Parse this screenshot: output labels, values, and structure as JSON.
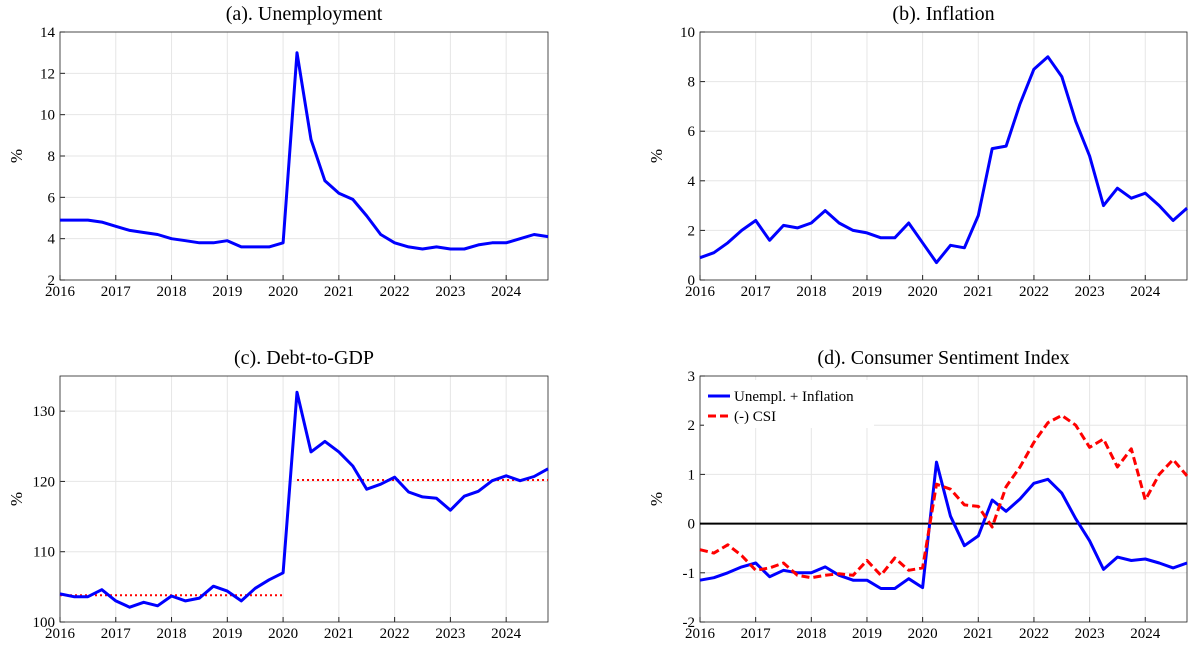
{
  "chart_data": [
    {
      "type": "line",
      "title": "(a). Unemployment",
      "ylabel": "%",
      "x": [
        2016,
        2016.25,
        2016.5,
        2016.75,
        2017,
        2017.25,
        2017.5,
        2017.75,
        2018,
        2018.25,
        2018.5,
        2018.75,
        2019,
        2019.25,
        2019.5,
        2019.75,
        2020,
        2020.25,
        2020.5,
        2020.75,
        2021,
        2021.25,
        2021.5,
        2021.75,
        2022,
        2022.25,
        2022.5,
        2022.75,
        2023,
        2023.25,
        2023.5,
        2023.75,
        2024,
        2024.25,
        2024.5,
        2024.75
      ],
      "xlim": [
        2016,
        2024.75
      ],
      "xticks": [
        2016,
        2017,
        2018,
        2019,
        2020,
        2021,
        2022,
        2023,
        2024
      ],
      "ylim": [
        2,
        14
      ],
      "yticks": [
        2,
        4,
        6,
        8,
        10,
        12,
        14
      ],
      "grid": true,
      "series": [
        {
          "color": "#0000ff",
          "values": [
            4.9,
            4.9,
            4.9,
            4.8,
            4.6,
            4.4,
            4.3,
            4.2,
            4.0,
            3.9,
            3.8,
            3.8,
            3.9,
            3.6,
            3.6,
            3.6,
            3.8,
            13.0,
            8.8,
            6.8,
            6.2,
            5.9,
            5.1,
            4.2,
            3.8,
            3.6,
            3.5,
            3.6,
            3.5,
            3.5,
            3.7,
            3.8,
            3.8,
            4.0,
            4.2,
            4.1
          ]
        }
      ]
    },
    {
      "type": "line",
      "title": "(b). Inflation",
      "ylabel": "%",
      "x": [
        2016,
        2016.25,
        2016.5,
        2016.75,
        2017,
        2017.25,
        2017.5,
        2017.75,
        2018,
        2018.25,
        2018.5,
        2018.75,
        2019,
        2019.25,
        2019.5,
        2019.75,
        2020,
        2020.25,
        2020.5,
        2020.75,
        2021,
        2021.25,
        2021.5,
        2021.75,
        2022,
        2022.25,
        2022.5,
        2022.75,
        2023,
        2023.25,
        2023.5,
        2023.75,
        2024,
        2024.25,
        2024.5,
        2024.75
      ],
      "xlim": [
        2016,
        2024.75
      ],
      "xticks": [
        2016,
        2017,
        2018,
        2019,
        2020,
        2021,
        2022,
        2023,
        2024
      ],
      "ylim": [
        0,
        10
      ],
      "yticks": [
        0,
        2,
        4,
        6,
        8,
        10
      ],
      "grid": true,
      "series": [
        {
          "color": "#0000ff",
          "values": [
            0.9,
            1.1,
            1.5,
            2.0,
            2.4,
            1.6,
            2.2,
            2.1,
            2.3,
            2.8,
            2.3,
            2.0,
            1.9,
            1.7,
            1.7,
            2.3,
            1.5,
            0.7,
            1.4,
            1.3,
            2.6,
            5.3,
            5.4,
            7.1,
            8.5,
            9.0,
            8.2,
            6.4,
            5.0,
            3.0,
            3.7,
            3.3,
            3.5,
            3.0,
            2.4,
            2.9
          ]
        }
      ]
    },
    {
      "type": "line",
      "title": "(c). Debt-to-GDP",
      "ylabel": "%",
      "x": [
        2016,
        2016.25,
        2016.5,
        2016.75,
        2017,
        2017.25,
        2017.5,
        2017.75,
        2018,
        2018.25,
        2018.5,
        2018.75,
        2019,
        2019.25,
        2019.5,
        2019.75,
        2020,
        2020.25,
        2020.5,
        2020.75,
        2021,
        2021.25,
        2021.5,
        2021.75,
        2022,
        2022.25,
        2022.5,
        2022.75,
        2023,
        2023.25,
        2023.5,
        2023.75,
        2024,
        2024.25,
        2024.5,
        2024.75
      ],
      "xlim": [
        2016,
        2024.75
      ],
      "xticks": [
        2016,
        2017,
        2018,
        2019,
        2020,
        2021,
        2022,
        2023,
        2024
      ],
      "ylim": [
        100,
        135
      ],
      "yticks": [
        100,
        110,
        120,
        130
      ],
      "grid": true,
      "series": [
        {
          "color": "#0000ff",
          "values": [
            104,
            103.6,
            103.6,
            104.6,
            103,
            102.1,
            102.8,
            102.3,
            103.7,
            103,
            103.4,
            105.1,
            104.4,
            103,
            104.8,
            106,
            107,
            132.7,
            124.2,
            125.7,
            124.2,
            122.2,
            118.9,
            119.6,
            120.6,
            118.5,
            117.8,
            117.6,
            115.9,
            117.9,
            118.6,
            120.1,
            120.8,
            120.1,
            120.7,
            121.8
          ]
        }
      ],
      "reference_lines": [
        {
          "x": [
            2016,
            2020
          ],
          "y": 103.8,
          "color": "#ff0000",
          "style": "dotted"
        },
        {
          "x": [
            2020.25,
            2024.75
          ],
          "y": 120.2,
          "color": "#ff0000",
          "style": "dotted"
        }
      ]
    },
    {
      "type": "line",
      "title": "(d). Consumer Sentiment Index",
      "ylabel": "%",
      "x": [
        2016,
        2016.25,
        2016.5,
        2016.75,
        2017,
        2017.25,
        2017.5,
        2017.75,
        2018,
        2018.25,
        2018.5,
        2018.75,
        2019,
        2019.25,
        2019.5,
        2019.75,
        2020,
        2020.25,
        2020.5,
        2020.75,
        2021,
        2021.25,
        2021.5,
        2021.75,
        2022,
        2022.25,
        2022.5,
        2022.75,
        2023,
        2023.25,
        2023.5,
        2023.75,
        2024,
        2024.25,
        2024.5,
        2024.75
      ],
      "xlim": [
        2016,
        2024.75
      ],
      "xticks": [
        2016,
        2017,
        2018,
        2019,
        2020,
        2021,
        2022,
        2023,
        2024
      ],
      "ylim": [
        -2,
        3
      ],
      "yticks": [
        -2,
        -1,
        0,
        1,
        2,
        3
      ],
      "grid": true,
      "legend": "upper left",
      "series": [
        {
          "name": "Unempl. + Inflation",
          "color": "#0000ff",
          "style": "solid",
          "values": [
            -1.15,
            -1.1,
            -1.0,
            -0.88,
            -0.8,
            -1.08,
            -0.95,
            -1.0,
            -1.0,
            -0.88,
            -1.05,
            -1.15,
            -1.15,
            -1.32,
            -1.32,
            -1.12,
            -1.3,
            1.25,
            0.15,
            -0.45,
            -0.25,
            0.48,
            0.25,
            0.5,
            0.82,
            0.9,
            0.62,
            0.1,
            -0.35,
            -0.93,
            -0.68,
            -0.75,
            -0.72,
            -0.8,
            -0.9,
            -0.8
          ]
        },
        {
          "name": "(-) CSI",
          "color": "#ff0000",
          "style": "dashed",
          "values": [
            -0.53,
            -0.6,
            -0.43,
            -0.65,
            -0.95,
            -0.9,
            -0.8,
            -1.05,
            -1.1,
            -1.05,
            -1.02,
            -1.05,
            -0.75,
            -1.05,
            -0.7,
            -0.95,
            -0.9,
            0.8,
            0.7,
            0.38,
            0.35,
            -0.07,
            0.75,
            1.15,
            1.65,
            2.05,
            2.2,
            2.0,
            1.55,
            1.72,
            1.15,
            1.52,
            0.48,
            1.0,
            1.3,
            0.97
          ]
        }
      ],
      "reference_lines": [
        {
          "x": [
            2016,
            2024.75
          ],
          "y": 0,
          "color": "#000000",
          "style": "solid"
        }
      ]
    }
  ]
}
